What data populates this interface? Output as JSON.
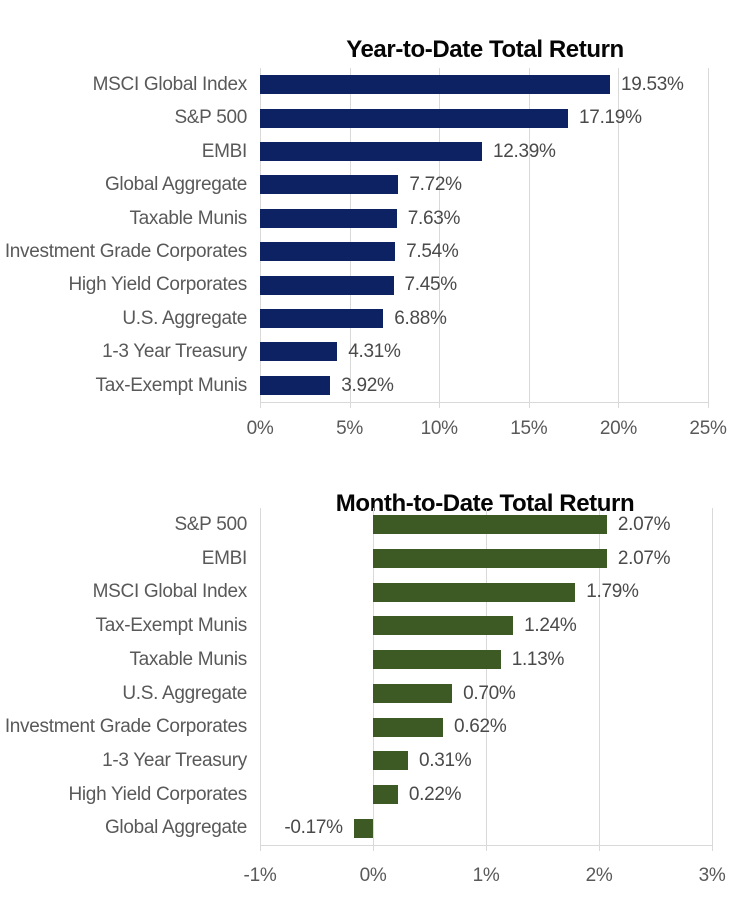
{
  "page": {
    "background": "#ffffff"
  },
  "chart_data": [
    {
      "id": "ytd",
      "type": "bar",
      "orientation": "horizontal",
      "title": "Year-to-Date Total Return",
      "categories": [
        "MSCI Global Index",
        "S&P 500",
        "EMBI",
        "Global Aggregate",
        "Taxable Munis",
        "Investment Grade Corporates",
        "High Yield Corporates",
        "U.S. Aggregate",
        "1-3 Year Treasury",
        "Tax-Exempt Munis"
      ],
      "values": [
        19.53,
        17.19,
        12.39,
        7.72,
        7.63,
        7.54,
        7.45,
        6.88,
        4.31,
        3.92
      ],
      "value_labels": [
        "19.53%",
        "17.19%",
        "12.39%",
        "7.72%",
        "7.63%",
        "7.54%",
        "7.45%",
        "6.88%",
        "4.31%",
        "3.92%"
      ],
      "xlabel": "",
      "ylabel": "",
      "xlim": [
        0,
        25
      ],
      "xticks": [
        0,
        5,
        10,
        15,
        20,
        25
      ],
      "xtick_labels": [
        "0%",
        "5%",
        "10%",
        "15%",
        "20%",
        "25%"
      ],
      "grid": true,
      "legend": "none",
      "bar_color": "#0D2263",
      "gridline_color": "#D9D9D9",
      "category_label_color": "#595959",
      "value_label_color": "#4A4A4A",
      "tick_label_color": "#595959",
      "title_color": "#050505"
    },
    {
      "id": "mtd",
      "type": "bar",
      "orientation": "horizontal",
      "title": "Month-to-Date Total Return",
      "categories": [
        "S&P 500",
        "EMBI",
        "MSCI Global Index",
        "Tax-Exempt Munis",
        "Taxable Munis",
        "U.S. Aggregate",
        "Investment Grade Corporates",
        "1-3 Year Treasury",
        "High Yield Corporates",
        "Global Aggregate"
      ],
      "values": [
        2.07,
        2.07,
        1.79,
        1.24,
        1.13,
        0.7,
        0.62,
        0.31,
        0.22,
        -0.17
      ],
      "value_labels": [
        "2.07%",
        "2.07%",
        "1.79%",
        "1.24%",
        "1.13%",
        "0.70%",
        "0.62%",
        "0.31%",
        "0.22%",
        "-0.17%"
      ],
      "xlabel": "",
      "ylabel": "",
      "xlim": [
        -1,
        3
      ],
      "xticks": [
        -1,
        0,
        1,
        2,
        3
      ],
      "xtick_labels": [
        "-1%",
        "0%",
        "1%",
        "2%",
        "3%"
      ],
      "grid": true,
      "legend": "none",
      "bar_color": "#3D5A24",
      "gridline_color": "#D9D9D9",
      "category_label_color": "#595959",
      "value_label_color": "#4A4A4A",
      "tick_label_color": "#595959",
      "title_color": "#050505"
    }
  ]
}
